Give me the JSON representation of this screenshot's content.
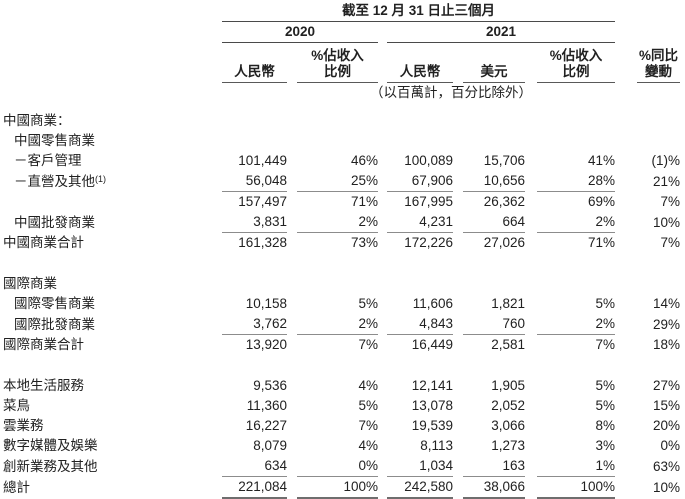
{
  "header": {
    "period": "截至 12 月 31 日止三個月",
    "y2020": "2020",
    "y2021": "2021",
    "rmb_2020": "人民幣",
    "pct_2020_l1": "%佔收入",
    "pct_2020_l2": "比例",
    "rmb_2021": "人民幣",
    "usd_2021": "美元",
    "pct_2021_l1": "%佔收入",
    "pct_2021_l2": "比例",
    "yoy_l1": "%同比",
    "yoy_l2": "變動",
    "units": "（以百萬計，百分比除外）"
  },
  "colors": {
    "text": "#212121",
    "header_rule": "#4a4a4a",
    "data_rule": "#8c8c8c",
    "total_rule": "#6e6e6e"
  },
  "rows": [
    {
      "type": "section",
      "label": "中國商業：",
      "indent": 0
    },
    {
      "type": "section",
      "label": "中國零售商業",
      "indent": 1
    },
    {
      "type": "data",
      "label": "－客戶管理",
      "indent": 1,
      "values": [
        "101,449",
        "46%",
        "100,089",
        "15,706",
        "41%",
        "(1)%"
      ],
      "rule": false
    },
    {
      "type": "data",
      "label": "－直營及其他",
      "sup": "(1)",
      "indent": 1,
      "values": [
        "56,048",
        "25%",
        "67,906",
        "10,656",
        "28%",
        "21%"
      ],
      "rule": true
    },
    {
      "type": "data",
      "label": "",
      "indent": 0,
      "values": [
        "157,497",
        "71%",
        "167,995",
        "26,362",
        "69%",
        "7%"
      ],
      "rule": false
    },
    {
      "type": "data",
      "label": "中國批發商業",
      "indent": 1,
      "values": [
        "3,831",
        "2%",
        "4,231",
        "664",
        "2%",
        "10%"
      ],
      "rule": true
    },
    {
      "type": "data",
      "label": "中國商業合計",
      "indent": 0,
      "values": [
        "161,328",
        "73%",
        "172,226",
        "27,026",
        "71%",
        "7%"
      ],
      "rule": false
    },
    {
      "type": "spacer"
    },
    {
      "type": "section",
      "label": "國際商業",
      "indent": 0
    },
    {
      "type": "data",
      "label": "國際零售商業",
      "indent": 1,
      "values": [
        "10,158",
        "5%",
        "11,606",
        "1,821",
        "5%",
        "14%"
      ],
      "rule": false
    },
    {
      "type": "data",
      "label": "國際批發商業",
      "indent": 1,
      "values": [
        "3,762",
        "2%",
        "4,843",
        "760",
        "2%",
        "29%"
      ],
      "rule": true
    },
    {
      "type": "data",
      "label": "國際商業合計",
      "indent": 0,
      "values": [
        "13,920",
        "7%",
        "16,449",
        "2,581",
        "7%",
        "18%"
      ],
      "rule": false
    },
    {
      "type": "spacer"
    },
    {
      "type": "data",
      "label": "本地生活服務",
      "indent": 0,
      "values": [
        "9,536",
        "4%",
        "12,141",
        "1,905",
        "5%",
        "27%"
      ],
      "rule": false
    },
    {
      "type": "data",
      "label": "菜鳥",
      "indent": 0,
      "values": [
        "11,360",
        "5%",
        "13,078",
        "2,052",
        "5%",
        "15%"
      ],
      "rule": false
    },
    {
      "type": "data",
      "label": "雲業務",
      "indent": 0,
      "values": [
        "16,227",
        "7%",
        "19,539",
        "3,066",
        "8%",
        "20%"
      ],
      "rule": false
    },
    {
      "type": "data",
      "label": "數字媒體及娛樂",
      "indent": 0,
      "values": [
        "8,079",
        "4%",
        "8,113",
        "1,273",
        "3%",
        "0%"
      ],
      "rule": false
    },
    {
      "type": "data",
      "label": "創新業務及其他",
      "indent": 0,
      "values": [
        "634",
        "0%",
        "1,034",
        "163",
        "1%",
        "63%"
      ],
      "rule": true
    },
    {
      "type": "data",
      "label": "總計",
      "indent": 0,
      "values": [
        "221,084",
        "100%",
        "242,580",
        "38,066",
        "100%",
        "10%"
      ],
      "rule": false,
      "total": true
    }
  ]
}
